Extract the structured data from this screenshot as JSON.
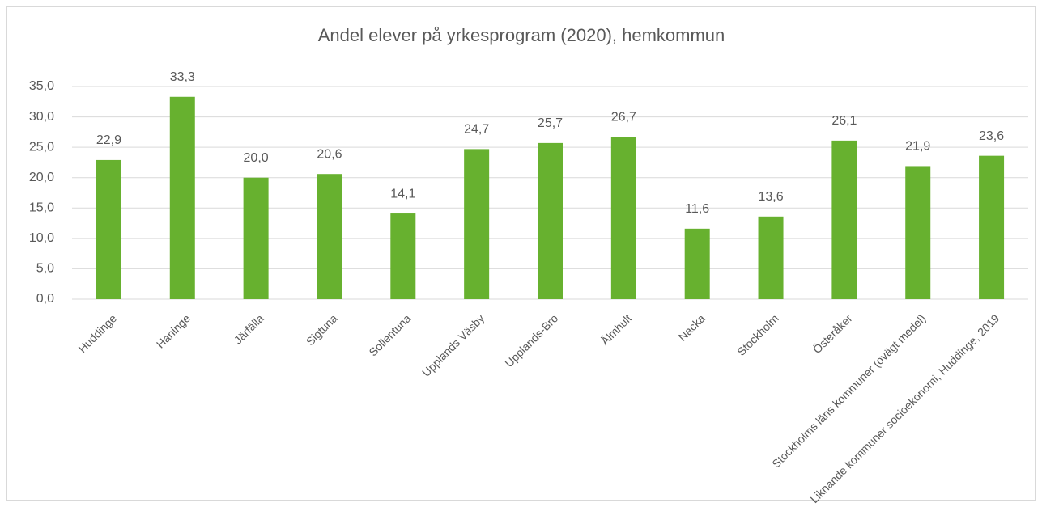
{
  "chart_data": {
    "type": "bar",
    "title": "Andel elever på yrkesprogram (2020), hemkommun",
    "categories": [
      "Huddinge",
      "Haninge",
      "Järfälla",
      "Sigtuna",
      "Sollentuna",
      "Upplands Väsby",
      "Upplands-Bro",
      "Älmhult",
      "Nacka",
      "Stockholm",
      "Österåker",
      "Stockholms läns kommuner (ovägt medel)",
      "Liknande kommuner socioekonomi, Huddinge, 2019"
    ],
    "values": [
      22.9,
      33.3,
      20.0,
      20.6,
      14.1,
      24.7,
      25.7,
      26.7,
      11.6,
      13.6,
      26.1,
      21.9,
      23.6
    ],
    "value_labels": [
      "22,9",
      "33,3",
      "20,0",
      "20,6",
      "14,1",
      "24,7",
      "25,7",
      "26,7",
      "11,6",
      "13,6",
      "26,1",
      "21,9",
      "23,6"
    ],
    "color": "#67b12f",
    "ylim": [
      0,
      35
    ],
    "yticks": [
      {
        "value": 0,
        "label": "0,0"
      },
      {
        "value": 5,
        "label": "5,0"
      },
      {
        "value": 10,
        "label": "10,0"
      },
      {
        "value": 15,
        "label": "15,0"
      },
      {
        "value": 20,
        "label": "20,0"
      },
      {
        "value": 25,
        "label": "25,0"
      },
      {
        "value": 30,
        "label": "30,0"
      },
      {
        "value": 35,
        "label": "35,0"
      }
    ],
    "grid": true
  }
}
